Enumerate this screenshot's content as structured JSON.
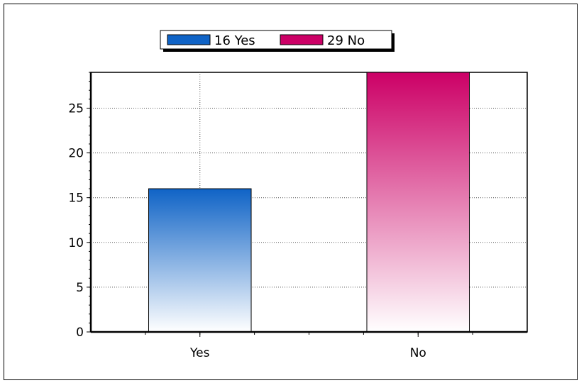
{
  "chart_data": {
    "type": "bar",
    "categories": [
      "Yes",
      "No"
    ],
    "values": [
      16,
      29
    ],
    "colors": [
      "#0f63c6",
      "#cc0066"
    ],
    "ylim": [
      0,
      29
    ],
    "yticks": [
      0,
      5,
      10,
      15,
      20,
      25
    ],
    "grid": true,
    "gradient": "vertical, saturated at top fading to white at bottom",
    "legend": {
      "position": "top-center",
      "entries": [
        {
          "label": "16 Yes",
          "color": "#0f63c6"
        },
        {
          "label": "29 No",
          "color": "#cc0066"
        }
      ]
    }
  }
}
